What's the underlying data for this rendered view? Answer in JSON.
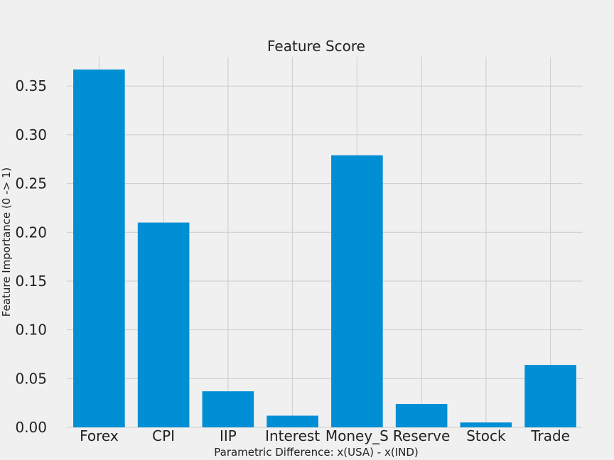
{
  "chart_data": {
    "type": "bar",
    "title": "Feature Score",
    "xlabel": "Parametric Difference: x(USA) - x(IND)",
    "ylabel": "Feature Importance (0 -> 1)",
    "categories": [
      "Forex",
      "CPI",
      "IIP",
      "Interest",
      "Money_S",
      "Reserve",
      "Stock",
      "Trade"
    ],
    "values": [
      0.367,
      0.21,
      0.037,
      0.012,
      0.279,
      0.024,
      0.005,
      0.064
    ],
    "ylim": [
      0,
      0.38
    ],
    "yticks": [
      "0.00",
      "0.05",
      "0.10",
      "0.15",
      "0.20",
      "0.25",
      "0.30",
      "0.35"
    ],
    "grid": true,
    "colors": {
      "bar": "#008fd5",
      "background": "#f0f0f0",
      "grid": "#cbcbcb",
      "text": "#222222"
    }
  }
}
